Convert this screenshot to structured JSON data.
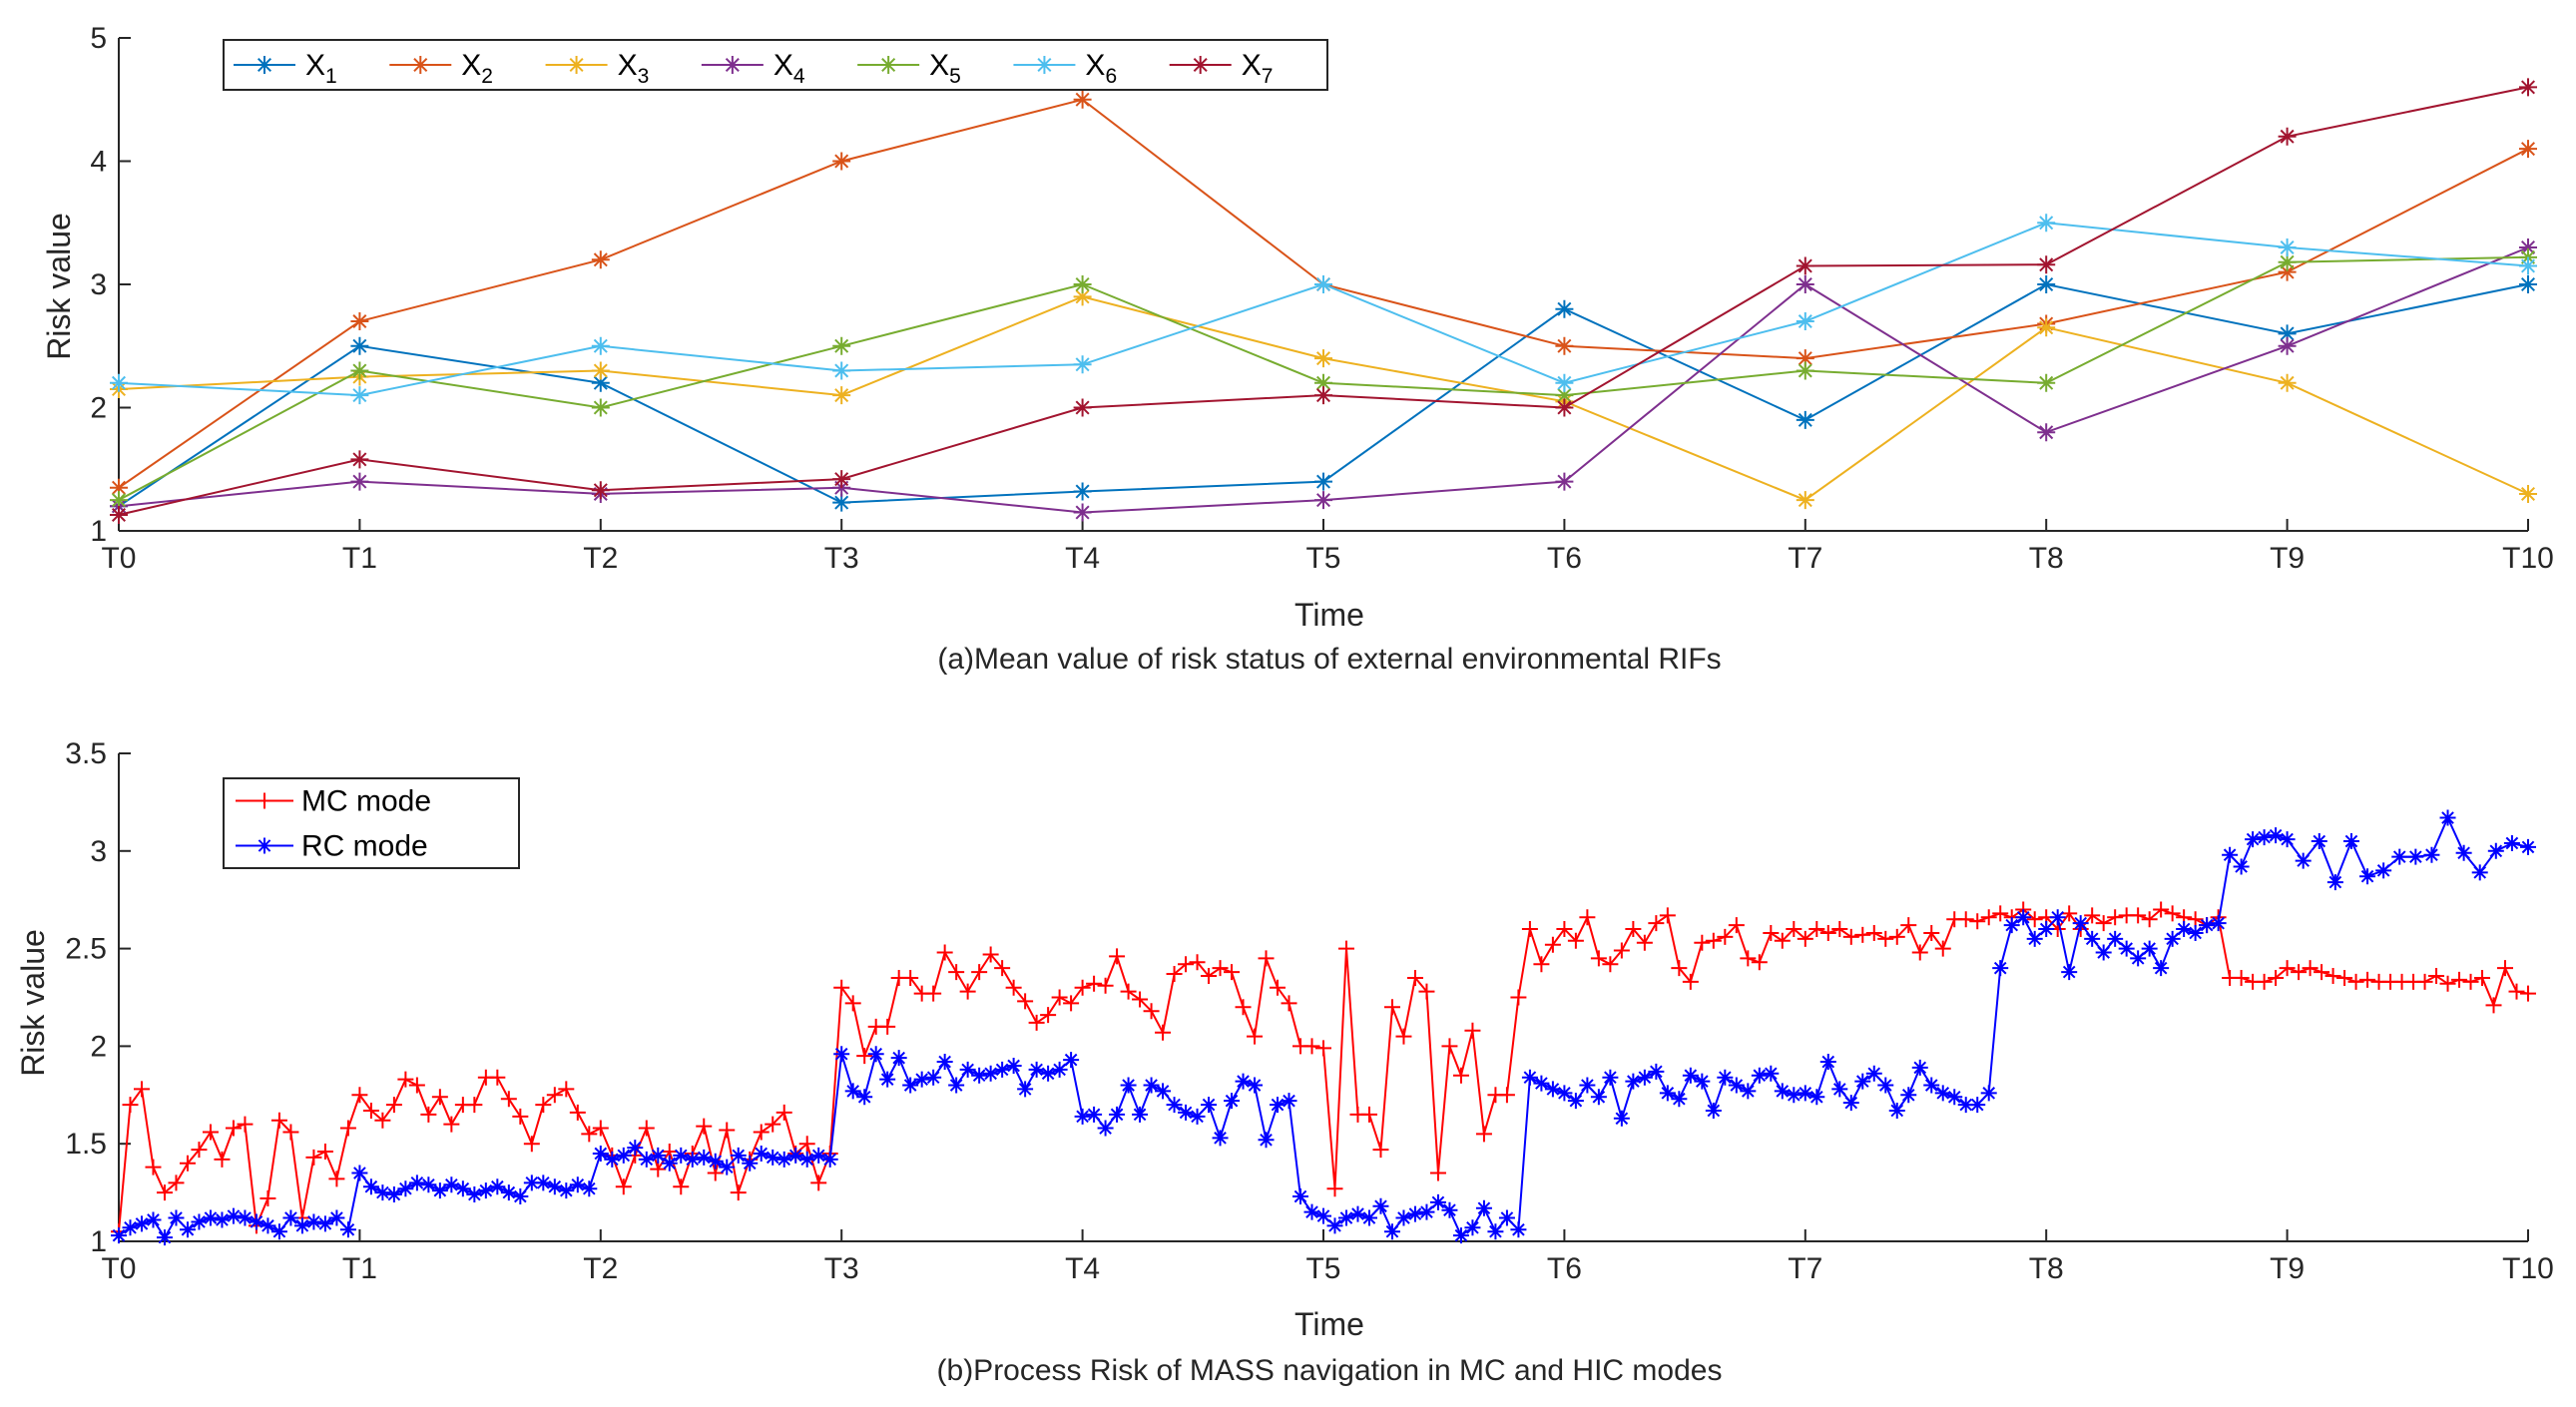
{
  "chart_data": [
    {
      "type": "line",
      "caption": "(a)Mean value of risk status of external environmental RIFs",
      "xlabel": "Time",
      "ylabel": "Risk value",
      "categories": [
        "T0",
        "T1",
        "T2",
        "T3",
        "T4",
        "T5",
        "T6",
        "T7",
        "T8",
        "T9",
        "T10"
      ],
      "ylim": [
        1,
        5
      ],
      "yticks": [
        "1",
        "2",
        "3",
        "4",
        "5"
      ],
      "grid": false,
      "legend": {
        "placement": "top-left",
        "orientation": "horizontal"
      },
      "series": [
        {
          "name": "X",
          "sub": "1",
          "color": "#0072BD",
          "marker": "asterisk",
          "values": [
            1.2,
            2.5,
            2.2,
            1.23,
            1.32,
            1.4,
            2.8,
            1.9,
            3.0,
            2.6,
            3.0
          ]
        },
        {
          "name": "X",
          "sub": "2",
          "color": "#D95319",
          "marker": "asterisk",
          "values": [
            1.35,
            2.7,
            3.2,
            4.0,
            4.5,
            3.0,
            2.5,
            2.4,
            2.68,
            3.1,
            4.1
          ]
        },
        {
          "name": "X",
          "sub": "3",
          "color": "#EDB120",
          "marker": "asterisk",
          "values": [
            2.15,
            2.25,
            2.3,
            2.1,
            2.9,
            2.4,
            2.05,
            1.25,
            2.65,
            2.2,
            1.3
          ]
        },
        {
          "name": "X",
          "sub": "4",
          "color": "#7E2F8E",
          "marker": "asterisk",
          "values": [
            1.2,
            1.4,
            1.3,
            1.35,
            1.15,
            1.25,
            1.4,
            3.0,
            1.8,
            2.5,
            3.3
          ]
        },
        {
          "name": "X",
          "sub": "5",
          "color": "#77AC30",
          "marker": "asterisk",
          "values": [
            1.25,
            2.3,
            2.0,
            2.5,
            3.0,
            2.2,
            2.1,
            2.3,
            2.2,
            3.18,
            3.22
          ]
        },
        {
          "name": "X",
          "sub": "6",
          "color": "#4DBEEE",
          "marker": "asterisk",
          "values": [
            2.2,
            2.1,
            2.5,
            2.3,
            2.35,
            3.0,
            2.2,
            2.7,
            3.5,
            3.3,
            3.15
          ]
        },
        {
          "name": "X",
          "sub": "7",
          "color": "#A2142F",
          "marker": "asterisk",
          "values": [
            1.13,
            1.58,
            1.33,
            1.42,
            2.0,
            2.1,
            2.0,
            3.15,
            3.16,
            4.2,
            4.6
          ]
        }
      ]
    },
    {
      "type": "line",
      "caption": "(b)Process Risk of MASS navigation in MC and HIC modes",
      "xlabel": "Time",
      "ylabel": "Risk value",
      "categories": [
        "T0",
        "T1",
        "T2",
        "T3",
        "T4",
        "T5",
        "T6",
        "T7",
        "T8",
        "T9",
        "T10"
      ],
      "ylim": [
        1,
        3.5
      ],
      "yticks": [
        "1",
        "1.5",
        "2",
        "2.5",
        "3",
        "3.5"
      ],
      "grid": false,
      "legend": {
        "placement": "top-left",
        "orientation": "vertical"
      },
      "series": [
        {
          "name": "MC mode",
          "color": "#FF0000",
          "marker": "plus",
          "segments": [
            [
              1.05,
              1.7,
              1.78,
              1.38,
              1.25,
              1.3,
              1.4,
              1.47,
              1.56,
              1.42,
              1.58,
              1.6,
              1.08,
              1.22,
              1.62,
              1.56,
              1.12,
              1.43,
              1.46,
              1.32,
              1.58,
              1.75
            ],
            [
              1.75,
              1.67,
              1.62,
              1.7,
              1.83,
              1.8,
              1.65,
              1.74,
              1.6,
              1.7,
              1.7,
              1.84,
              1.84,
              1.73,
              1.64,
              1.5,
              1.7,
              1.75,
              1.78,
              1.66,
              1.55,
              1.58
            ],
            [
              1.58,
              1.44,
              1.28,
              1.44,
              1.58,
              1.37,
              1.46,
              1.28,
              1.45,
              1.59,
              1.35,
              1.57,
              1.25,
              1.42,
              1.56,
              1.6,
              1.66,
              1.45,
              1.5,
              1.3,
              1.45,
              2.3
            ],
            [
              2.3,
              2.22,
              1.95,
              2.1,
              2.1,
              2.35,
              2.35,
              2.27,
              2.27,
              2.48,
              2.38,
              2.28,
              2.38,
              2.47,
              2.4,
              2.3,
              2.23,
              2.12,
              2.16,
              2.25,
              2.22,
              2.3
            ],
            [
              2.3,
              2.32,
              2.31,
              2.46,
              2.28,
              2.24,
              2.18,
              2.07,
              2.37,
              2.42,
              2.43,
              2.36,
              2.4,
              2.38,
              2.2,
              2.05,
              2.45,
              2.3,
              2.22,
              2.0,
              2.0,
              1.99
            ],
            [
              1.99,
              1.27,
              2.5,
              1.65,
              1.65,
              1.47,
              2.2,
              2.05,
              2.35,
              2.28,
              1.35,
              2.0,
              1.85,
              2.08,
              1.55,
              1.75,
              1.75,
              2.25,
              2.6,
              2.42,
              2.52,
              2.6
            ],
            [
              2.6,
              2.54,
              2.66,
              2.45,
              2.42,
              2.49,
              2.6,
              2.53,
              2.63,
              2.67,
              2.4,
              2.33,
              2.53,
              2.54,
              2.56,
              2.62,
              2.45,
              2.43,
              2.58,
              2.54,
              2.6,
              2.55
            ],
            [
              2.55,
              2.6,
              2.58,
              2.6,
              2.56,
              2.57,
              2.58,
              2.55,
              2.56,
              2.62,
              2.48,
              2.58,
              2.5,
              2.65,
              2.65,
              2.64,
              2.66,
              2.68,
              2.66,
              2.7,
              2.65,
              2.66
            ],
            [
              2.66,
              2.6,
              2.68,
              2.6,
              2.67,
              2.63,
              2.66,
              2.67,
              2.67,
              2.65,
              2.7,
              2.68,
              2.66,
              2.65,
              2.62,
              2.66,
              2.35,
              2.35,
              2.33,
              2.33,
              2.35,
              2.4
            ],
            [
              2.4,
              2.38,
              2.4,
              2.38,
              2.36,
              2.35,
              2.33,
              2.34,
              2.33,
              2.33,
              2.33,
              2.33,
              2.33,
              2.36,
              2.32,
              2.34,
              2.33,
              2.35,
              2.21,
              2.4,
              2.28,
              2.27
            ]
          ]
        },
        {
          "name": "RC mode",
          "color": "#0000FF",
          "marker": "asterisk",
          "segments": [
            [
              1.03,
              1.07,
              1.09,
              1.11,
              1.02,
              1.12,
              1.06,
              1.1,
              1.12,
              1.11,
              1.13,
              1.12,
              1.1,
              1.08,
              1.05,
              1.12,
              1.08,
              1.1,
              1.09,
              1.12,
              1.06,
              1.35
            ],
            [
              1.35,
              1.28,
              1.25,
              1.24,
              1.27,
              1.3,
              1.29,
              1.26,
              1.29,
              1.27,
              1.24,
              1.26,
              1.28,
              1.25,
              1.23,
              1.3,
              1.3,
              1.28,
              1.26,
              1.29,
              1.27,
              1.45
            ],
            [
              1.45,
              1.42,
              1.44,
              1.48,
              1.42,
              1.44,
              1.4,
              1.44,
              1.42,
              1.43,
              1.41,
              1.38,
              1.44,
              1.4,
              1.45,
              1.43,
              1.42,
              1.44,
              1.42,
              1.44,
              1.42,
              1.96
            ],
            [
              1.96,
              1.77,
              1.74,
              1.96,
              1.83,
              1.94,
              1.8,
              1.83,
              1.84,
              1.92,
              1.8,
              1.88,
              1.85,
              1.86,
              1.88,
              1.9,
              1.78,
              1.88,
              1.86,
              1.88,
              1.93,
              1.64
            ],
            [
              1.64,
              1.65,
              1.58,
              1.65,
              1.8,
              1.65,
              1.8,
              1.77,
              1.7,
              1.66,
              1.64,
              1.7,
              1.53,
              1.72,
              1.82,
              1.8,
              1.52,
              1.7,
              1.72,
              1.23,
              1.15,
              1.13
            ],
            [
              1.13,
              1.08,
              1.12,
              1.14,
              1.12,
              1.18,
              1.05,
              1.12,
              1.14,
              1.15,
              1.2,
              1.16,
              1.03,
              1.07,
              1.17,
              1.05,
              1.12,
              1.06,
              1.84,
              1.81,
              1.78,
              1.76
            ],
            [
              1.76,
              1.72,
              1.8,
              1.74,
              1.84,
              1.63,
              1.82,
              1.84,
              1.87,
              1.76,
              1.73,
              1.85,
              1.82,
              1.67,
              1.84,
              1.8,
              1.77,
              1.85,
              1.86,
              1.77,
              1.75,
              1.76
            ],
            [
              1.76,
              1.74,
              1.92,
              1.78,
              1.71,
              1.82,
              1.86,
              1.8,
              1.67,
              1.75,
              1.89,
              1.8,
              1.76,
              1.74,
              1.7,
              1.7,
              1.76,
              2.4,
              2.62,
              2.66,
              2.55,
              2.6
            ],
            [
              2.6,
              2.66,
              2.38,
              2.63,
              2.55,
              2.48,
              2.55,
              2.5,
              2.45,
              2.5,
              2.4,
              2.55,
              2.6,
              2.58,
              2.62,
              2.63,
              2.98,
              2.92,
              3.06,
              3.07,
              3.08,
              3.06
            ],
            [
              3.06,
              2.95,
              3.05,
              2.84,
              3.05,
              2.87,
              2.9,
              2.97,
              2.97,
              2.98,
              3.17,
              2.99,
              2.89,
              3.0,
              3.04,
              3.02
            ]
          ]
        }
      ]
    }
  ]
}
